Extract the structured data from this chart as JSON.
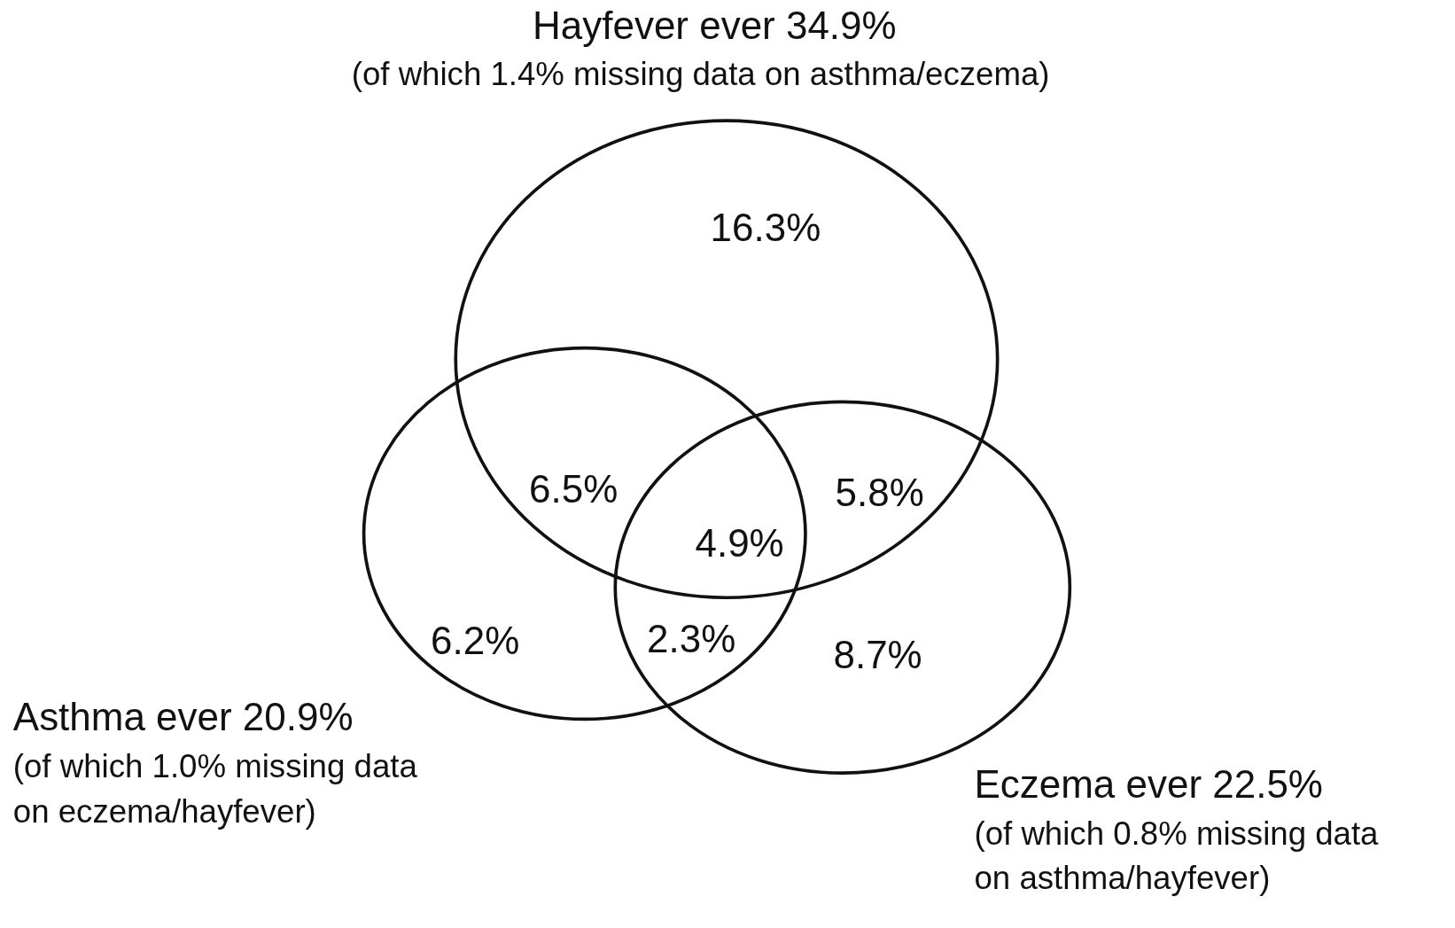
{
  "chart_data": {
    "type": "other",
    "categories": [
      null,
      null,
      null,
      null,
      null,
      null,
      null
    ],
    "values": [
      16.3,
      6.5,
      5.8,
      4.9,
      6.2,
      2.3,
      8.7
    ],
    "value_labels": [
      "16.3%",
      "6.5%",
      "5.8%",
      "4.9%",
      "6.2%",
      "2.3%",
      "8.7%"
    ],
    "annotations": [
      "Hayfever ever 34.9%",
      "(of which 1.4% missing data on asthma/eczema)",
      "Asthma ever 20.9%",
      "(of which 1.0% missing data",
      "on eczema/hayfever)",
      "Eczema ever 22.5%",
      "(of which 0.8% missing data",
      "on asthma/hayfever)"
    ]
  }
}
